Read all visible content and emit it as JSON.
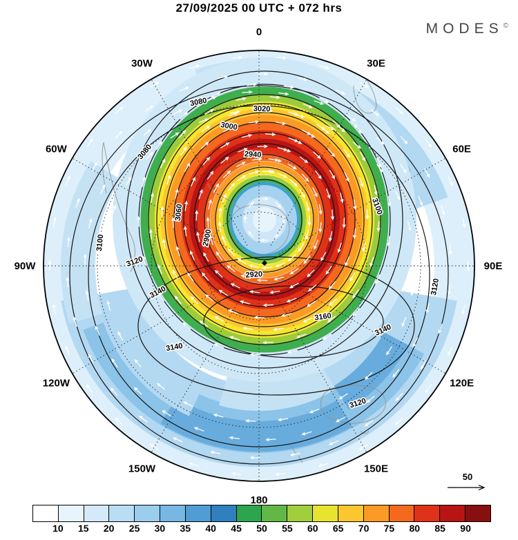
{
  "header": {
    "title": "27/09/2025  00 UTC  + 072 hrs",
    "logo": "MODES",
    "logo_mark": "©"
  },
  "map": {
    "lon_labels": [
      {
        "label": "0",
        "deg": 0
      },
      {
        "label": "30E",
        "deg": 30
      },
      {
        "label": "60E",
        "deg": 60
      },
      {
        "label": "90E",
        "deg": 90
      },
      {
        "label": "120E",
        "deg": 120
      },
      {
        "label": "150E",
        "deg": 150
      },
      {
        "label": "180",
        "deg": 180
      },
      {
        "label": "150W",
        "deg": 210
      },
      {
        "label": "120W",
        "deg": 240
      },
      {
        "label": "90W",
        "deg": 270
      },
      {
        "label": "60W",
        "deg": 300
      },
      {
        "label": "30W",
        "deg": 330
      }
    ],
    "contour_labels": [
      "2900",
      "2920",
      "2940",
      "3000",
      "3020",
      "3080",
      "3060",
      "3080",
      "3100",
      "3120",
      "3140",
      "3100",
      "3120",
      "3140",
      "3160",
      "3140",
      "3120"
    ],
    "wind_reference": "50"
  },
  "colorbar": {
    "ticks": [
      10,
      15,
      20,
      25,
      30,
      35,
      40,
      45,
      50,
      55,
      60,
      65,
      70,
      75,
      80,
      85,
      90
    ],
    "colors": [
      "#ffffff",
      "#e8f4fc",
      "#d4eafa",
      "#b9ddf5",
      "#9bcdee",
      "#77b7e3",
      "#509cd4",
      "#3080c0",
      "#2ca54f",
      "#62b847",
      "#a0ce3c",
      "#e8e32f",
      "#fdc62f",
      "#fb9b26",
      "#f4691e",
      "#e03218",
      "#b81414",
      "#870f10"
    ]
  },
  "chart_data": {
    "type": "heatmap",
    "title": "27/09/2025 00 UTC + 072 hrs",
    "description_visible": "Circular polar map with shaded wind-speed field, black geopotential-height contours and white wind vectors",
    "longitude_ring_labels": [
      "0",
      "30E",
      "60E",
      "90E",
      "120E",
      "150E",
      "180",
      "150W",
      "120W",
      "90W",
      "60W",
      "30W"
    ],
    "shading_levels": [
      10,
      15,
      20,
      25,
      30,
      35,
      40,
      45,
      50,
      55,
      60,
      65,
      70,
      75,
      80,
      85,
      90
    ],
    "shading_colors": [
      "#ffffff",
      "#e8f4fc",
      "#d4eafa",
      "#b9ddf5",
      "#9bcdee",
      "#77b7e3",
      "#509cd4",
      "#3080c0",
      "#2ca54f",
      "#62b847",
      "#a0ce3c",
      "#e8e32f",
      "#fdc62f",
      "#fb9b26",
      "#f4691e",
      "#e03218",
      "#b81414",
      "#870f10"
    ],
    "contour_levels_visible": [
      2900,
      2920,
      2940,
      3000,
      3020,
      3060,
      3080,
      3100,
      3120,
      3140,
      3160
    ],
    "vector_reference_value": 50,
    "legend_position": "bottom"
  }
}
